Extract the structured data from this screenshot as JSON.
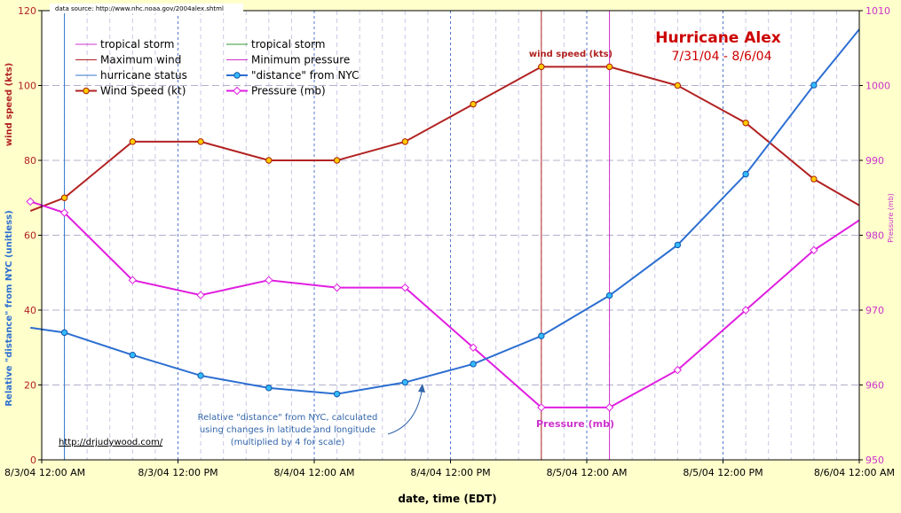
{
  "title": "Hurricane Alex",
  "subtitle": "7/31/04 - 8/6/04",
  "source_note": "data source: http://www.nhc.noaa.gov/2004alex.shtml",
  "credit_link": "http://drjudywood.com/",
  "annotations": {
    "wind_marker": "wind speed (kts)",
    "pressure_marker": "Pressure (mb)",
    "distance_note": [
      "Relative \"distance\" from NYC, calculated",
      "using changes in latitude and longitude",
      "(multiplied by 4 for scale)"
    ]
  },
  "legend": [
    {
      "label": "tropical storm",
      "color": "#cc33cc",
      "marker": "none"
    },
    {
      "label": "tropical storm",
      "color": "#339933",
      "marker": "none"
    },
    {
      "label": "Maximum wind",
      "color": "#b22222",
      "marker": "none"
    },
    {
      "label": "Minimum pressure",
      "color": "#cc33cc",
      "marker": "none"
    },
    {
      "label": "hurricane status",
      "color": "#3377cc",
      "marker": "none"
    },
    {
      "label": "\"distance\" from NYC",
      "color": "#2d6fd1",
      "marker": "circle"
    },
    {
      "label": "Wind Speed (kt)",
      "color": "#b22222",
      "marker": "circle"
    },
    {
      "label": "Pressure (mb)",
      "color": "#e01ee0",
      "marker": "diamond"
    }
  ],
  "colors": {
    "wind": "#b22222",
    "pressure": "#e01ee0",
    "distance": "#2d6fd1",
    "grid_dash": "#c8c8e6",
    "left_axis": "#b22222",
    "right_axis": "#cc33cc",
    "frame_bg": "#ffffcc"
  },
  "chart_data": {
    "type": "line",
    "xlabel": "date, time (EDT)",
    "ylabel_left_top": "wind speed (kts)",
    "ylabel_left_bottom": "Relative \"distance\" from NYC (unitless)",
    "ylabel_right": "Pressure (mb)",
    "xlim": [
      "8/3/04 12:00 AM",
      "8/6/04 12:00 AM"
    ],
    "x_ticks": [
      "8/3/04 12:00 AM",
      "8/3/04 12:00 PM",
      "8/4/04 12:00 AM",
      "8/4/04 12:00 PM",
      "8/5/04 12:00 AM",
      "8/5/04 12:00 PM",
      "8/6/04 12:00 AM"
    ],
    "ylim_left": [
      0,
      120
    ],
    "y_ticks_left": [
      0,
      20,
      40,
      60,
      80,
      100,
      120
    ],
    "ylim_right": [
      950,
      1010
    ],
    "y_ticks_right": [
      950,
      960,
      970,
      980,
      990,
      1000,
      1010
    ],
    "grid": true,
    "legend_position": "top-left",
    "series": [
      {
        "name": "Wind Speed (kt)",
        "axis": "left",
        "x": [
          "8/2/04 11:00 PM",
          "8/3/04 2:00 AM",
          "8/3/04 8:00 AM",
          "8/3/04 2:00 PM",
          "8/3/04 8:00 PM",
          "8/4/04 2:00 AM",
          "8/4/04 8:00 AM",
          "8/4/04 2:00 PM",
          "8/4/04 8:00 PM",
          "8/5/04 2:00 AM",
          "8/5/04 8:00 AM",
          "8/5/04 2:00 PM",
          "8/5/04 8:00 PM",
          "8/6/04 12:00 AM"
        ],
        "y": [
          66.5,
          70,
          85,
          85,
          80,
          80,
          85,
          95,
          105,
          105,
          100,
          90,
          75,
          68
        ],
        "markers": [
          false,
          true,
          true,
          true,
          true,
          true,
          true,
          true,
          true,
          true,
          true,
          true,
          true,
          false
        ]
      },
      {
        "name": "Pressure (mb)",
        "axis": "right",
        "x": [
          "8/2/04 11:00 PM",
          "8/3/04 2:00 AM",
          "8/3/04 8:00 AM",
          "8/3/04 2:00 PM",
          "8/3/04 8:00 PM",
          "8/4/04 2:00 AM",
          "8/4/04 8:00 AM",
          "8/4/04 2:00 PM",
          "8/4/04 8:00 PM",
          "8/5/04 2:00 AM",
          "8/5/04 8:00 AM",
          "8/5/04 2:00 PM",
          "8/5/04 8:00 PM",
          "8/6/04 12:00 AM"
        ],
        "y": [
          984.5,
          983,
          974,
          972,
          974,
          973,
          973,
          965,
          957,
          957,
          962,
          970,
          978,
          982
        ],
        "markers": [
          true,
          true,
          true,
          true,
          true,
          true,
          true,
          true,
          true,
          true,
          true,
          true,
          true,
          false
        ]
      },
      {
        "name": "\"distance\" from NYC",
        "axis": "left",
        "x": [
          "8/2/04 11:00 PM",
          "8/3/04 2:00 AM",
          "8/3/04 8:00 AM",
          "8/3/04 2:00 PM",
          "8/3/04 8:00 PM",
          "8/4/04 2:00 AM",
          "8/4/04 8:00 AM",
          "8/4/04 2:00 PM",
          "8/4/04 8:00 PM",
          "8/5/04 2:00 AM",
          "8/5/04 8:00 AM",
          "8/5/04 2:00 PM",
          "8/5/04 8:00 PM",
          "8/6/04 12:00 AM"
        ],
        "y": [
          35.3,
          34,
          28,
          22.5,
          19.2,
          17.6,
          20.7,
          25.6,
          33.1,
          43.9,
          57.4,
          76.3,
          100.1,
          115
        ],
        "markers": [
          false,
          true,
          true,
          true,
          true,
          true,
          true,
          true,
          true,
          true,
          true,
          true,
          true,
          false
        ]
      }
    ],
    "reference_lines": [
      {
        "name": "hurricane status",
        "x": "8/3/04 2:00 AM",
        "color": "#3377cc"
      },
      {
        "name": "Maximum wind",
        "x": "8/4/04 8:00 PM",
        "color": "#b22222"
      },
      {
        "name": "Minimum pressure",
        "x": "8/5/04 2:00 AM",
        "color": "#cc33cc"
      }
    ]
  }
}
